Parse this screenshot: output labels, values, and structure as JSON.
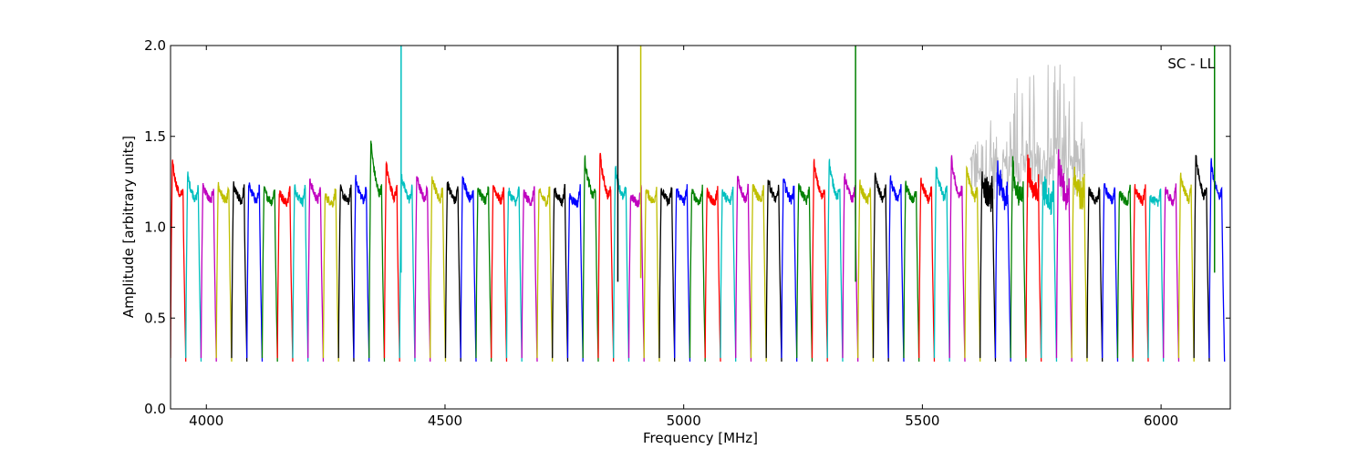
{
  "chart_data": {
    "type": "line",
    "title": "",
    "annotation": "SC - LL",
    "xlabel": "Frequency [MHz]",
    "ylabel": "Amplitude [arbitrary units]",
    "xlim": [
      3925,
      6145
    ],
    "ylim": [
      0.0,
      2.0
    ],
    "x_ticks": [
      4000,
      4500,
      5000,
      5500,
      6000
    ],
    "y_ticks": [
      0.0,
      0.5,
      1.0,
      1.5,
      2.0
    ],
    "x_tick_labels": [
      "4000",
      "4500",
      "5000",
      "5500",
      "6000"
    ],
    "y_tick_labels": [
      "0.0",
      "0.5",
      "1.0",
      "1.5",
      "2.0"
    ],
    "grid": false,
    "legend": "none",
    "color_cycle": [
      "#ff0000",
      "#00bfbf",
      "#bf00bf",
      "#bfbf00",
      "#000000",
      "#0000ff",
      "#008000"
    ],
    "raw_color": "#c0c0c0",
    "band_width_mhz": 32,
    "band_starts": [
      3925,
      3957,
      3989,
      4021,
      4053,
      4085,
      4117,
      4149,
      4181,
      4213,
      4245,
      4277,
      4309,
      4341,
      4373,
      4405,
      4437,
      4469,
      4501,
      4533,
      4565,
      4597,
      4629,
      4661,
      4693,
      4725,
      4757,
      4789,
      4821,
      4853,
      4885,
      4917,
      4949,
      4981,
      5013,
      5045,
      5077,
      5109,
      5141,
      5173,
      5205,
      5237,
      5269,
      5301,
      5333,
      5365,
      5397,
      5429,
      5461,
      5493,
      5525,
      5557,
      5589,
      5621,
      5653,
      5685,
      5717,
      5749,
      5781,
      5813,
      5845,
      5877,
      5909,
      5941,
      5973,
      6005,
      6037,
      6069,
      6101
    ],
    "band_peaks": [
      1.38,
      1.3,
      1.25,
      1.24,
      1.24,
      1.25,
      1.22,
      1.2,
      1.23,
      1.28,
      1.18,
      1.22,
      1.28,
      1.5,
      1.37,
      1.3,
      1.3,
      1.3,
      1.26,
      1.3,
      1.23,
      1.25,
      1.21,
      1.2,
      1.21,
      1.22,
      1.18,
      1.4,
      1.42,
      1.35,
      1.18,
      1.22,
      1.22,
      1.22,
      1.21,
      1.2,
      1.21,
      1.3,
      1.25,
      1.28,
      1.28,
      1.25,
      1.38,
      1.38,
      1.3,
      1.25,
      1.3,
      1.28,
      1.25,
      1.28,
      1.35,
      1.4,
      1.35,
      1.3,
      1.32,
      1.35,
      1.38,
      1.25,
      1.38,
      1.35,
      1.22,
      1.25,
      1.2,
      1.23,
      1.18,
      1.22,
      1.3,
      1.42,
      1.38
    ],
    "spikes": [
      {
        "x": 4408,
        "y_top": 2.0,
        "y_bottom": 0.75,
        "color": "#00bfbf"
      },
      {
        "x": 4862,
        "y_top": 2.0,
        "y_bottom": 0.7,
        "color": "#000000"
      },
      {
        "x": 4910,
        "y_top": 2.0,
        "y_bottom": 0.72,
        "color": "#bfbf00"
      },
      {
        "x": 5360,
        "y_top": 2.0,
        "y_bottom": 0.7,
        "color": "#008000"
      },
      {
        "x": 6112,
        "y_top": 2.0,
        "y_bottom": 0.75,
        "color": "#008000"
      }
    ],
    "raw_noise_region": {
      "x_start": 5600,
      "x_end": 5840,
      "y_max": 1.9
    }
  }
}
